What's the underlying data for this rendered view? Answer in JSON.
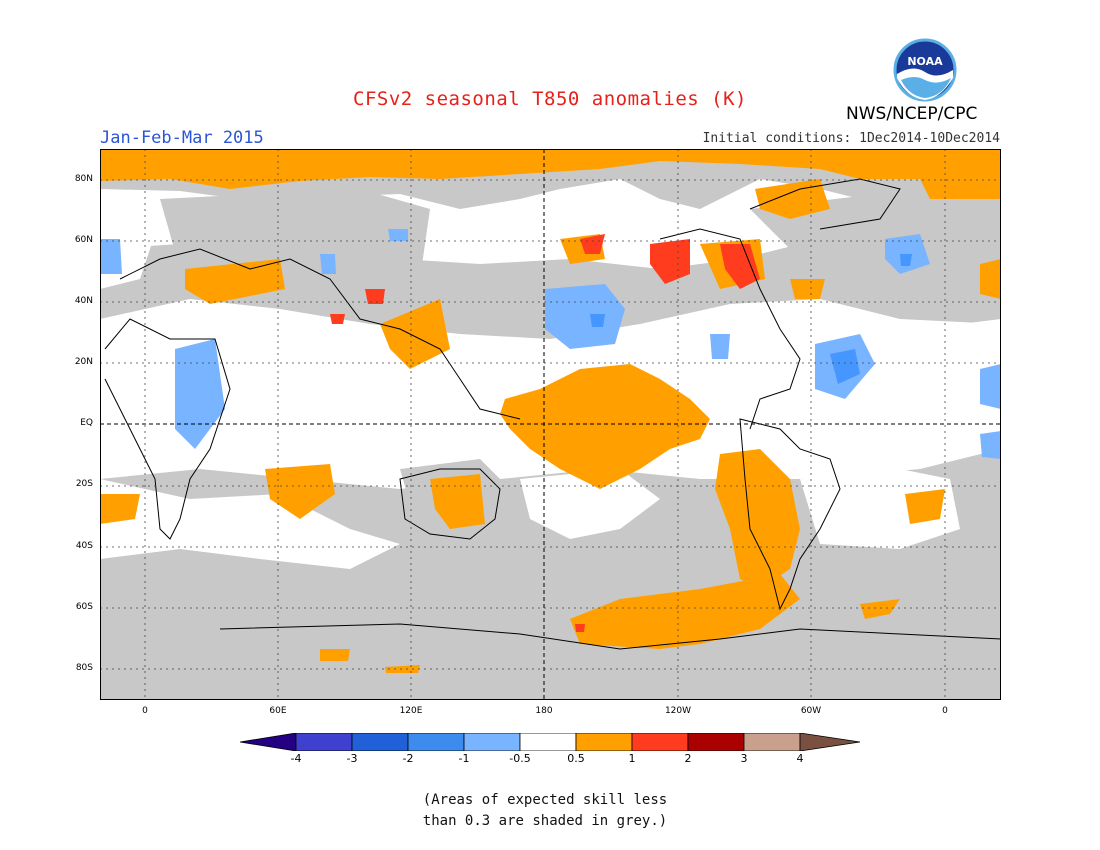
{
  "title": "CFSv2 seasonal T850 anomalies (K)",
  "period": "Jan-Feb-Mar 2015",
  "initial_conditions": "Initial conditions: 1Dec2014-10Dec2014",
  "organization": "NWS/NCEP/CPC",
  "logo_text": "NOAA",
  "note_line1": "(Areas of expected skill less",
  "note_line2": "than 0.3 are shaded in grey.)",
  "map": {
    "lat_labels": [
      "80N",
      "60N",
      "40N",
      "20N",
      "EQ",
      "20S",
      "40S",
      "60S",
      "80S"
    ],
    "lon_labels": [
      "0",
      "60E",
      "120E",
      "180",
      "120W",
      "60W",
      "0"
    ],
    "colors": {
      "grey": "#c8c8c8",
      "orange": "#ffa000",
      "red_orange": "#ff3c1e",
      "dark_red": "#aa0000",
      "light_blue": "#78b4ff",
      "blue": "#4696ff"
    }
  },
  "colorbar": {
    "labels": [
      "-4",
      "-3",
      "-2",
      "-1",
      "-0.5",
      "0.5",
      "1",
      "2",
      "3",
      "4"
    ],
    "colors": [
      "#240082",
      "#4040d0",
      "#2060d8",
      "#3c8cf0",
      "#78b4ff",
      "#ffffff",
      "#ffa000",
      "#ff3c1e",
      "#aa0000",
      "#c8a08c",
      "#7a5040"
    ]
  }
}
